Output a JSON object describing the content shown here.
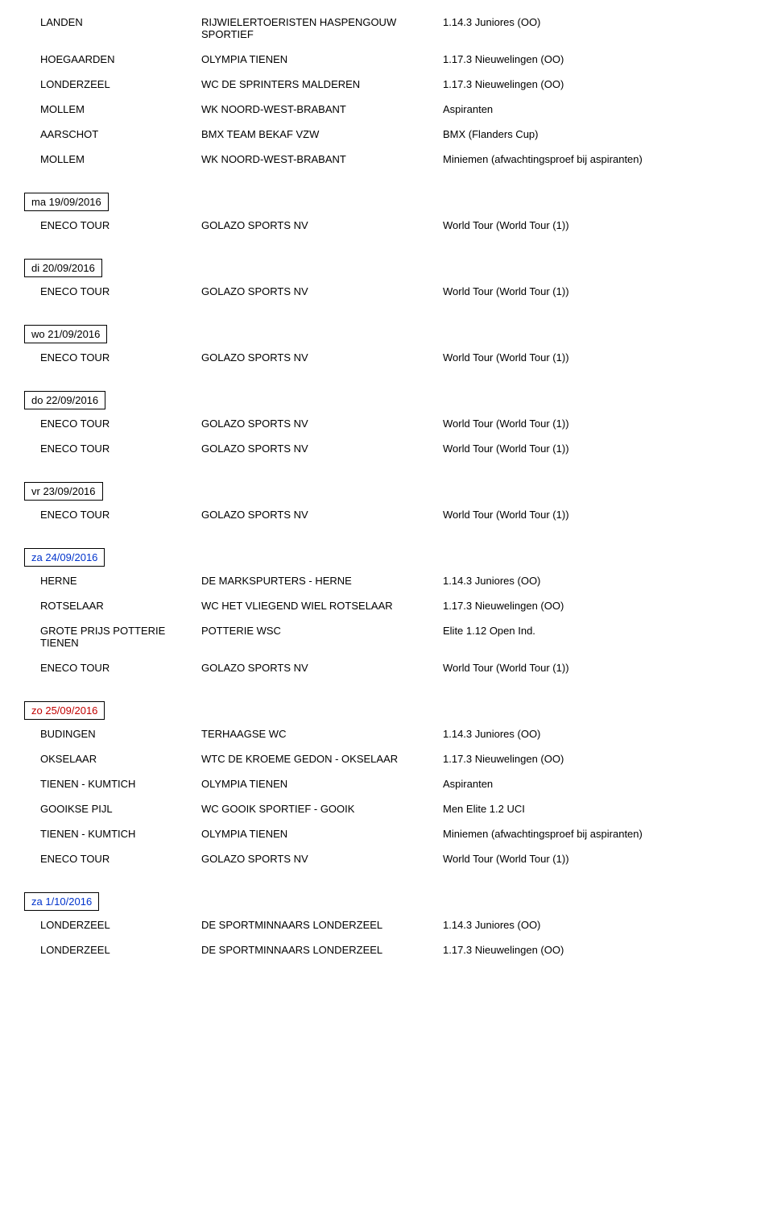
{
  "topRows": [
    {
      "c1": "LANDEN",
      "c2": "RIJWIELERTOERISTEN HASPENGOUW SPORTIEF",
      "c3": "1.14.3 Juniores (OO)"
    },
    {
      "c1": "HOEGAARDEN",
      "c2": "OLYMPIA TIENEN",
      "c3": "1.17.3 Nieuwelingen (OO)"
    },
    {
      "c1": "LONDERZEEL",
      "c2": "WC DE SPRINTERS MALDEREN",
      "c3": "1.17.3 Nieuwelingen (OO)"
    },
    {
      "c1": "MOLLEM",
      "c2": "WK NOORD-WEST-BRABANT",
      "c3": "Aspiranten"
    },
    {
      "c1": "AARSCHOT",
      "c2": "BMX TEAM BEKAF VZW",
      "c3": "BMX (Flanders Cup)"
    },
    {
      "c1": "MOLLEM",
      "c2": "WK NOORD-WEST-BRABANT",
      "c3": "Miniemen (afwachtingsproef bij aspiranten)"
    }
  ],
  "sections": [
    {
      "date": "ma 19/09/2016",
      "dateClass": "",
      "rows": [
        {
          "c1": "ENECO TOUR",
          "c2": "GOLAZO SPORTS NV",
          "c3": "World Tour (World Tour (1))"
        }
      ]
    },
    {
      "date": "di 20/09/2016",
      "dateClass": "",
      "rows": [
        {
          "c1": "ENECO TOUR",
          "c2": "GOLAZO SPORTS NV",
          "c3": "World Tour (World Tour (1))"
        }
      ]
    },
    {
      "date": "wo 21/09/2016",
      "dateClass": "",
      "rows": [
        {
          "c1": "ENECO TOUR",
          "c2": "GOLAZO SPORTS NV",
          "c3": "World Tour (World Tour (1))"
        }
      ]
    },
    {
      "date": "do 22/09/2016",
      "dateClass": "",
      "rows": [
        {
          "c1": "ENECO TOUR",
          "c2": "GOLAZO SPORTS NV",
          "c3": "World Tour (World Tour (1))"
        },
        {
          "c1": "ENECO TOUR",
          "c2": "GOLAZO SPORTS NV",
          "c3": "World Tour (World Tour (1))"
        }
      ]
    },
    {
      "date": "vr 23/09/2016",
      "dateClass": "",
      "rows": [
        {
          "c1": "ENECO TOUR",
          "c2": "GOLAZO SPORTS NV",
          "c3": "World Tour (World Tour (1))"
        }
      ]
    },
    {
      "date": "za 24/09/2016",
      "dateClass": "blue",
      "rows": [
        {
          "c1": "HERNE",
          "c2": "DE MARKSPURTERS  -  HERNE",
          "c3": "1.14.3 Juniores (OO)"
        },
        {
          "c1": "ROTSELAAR",
          "c2": "WC HET VLIEGEND WIEL ROTSELAAR",
          "c3": "1.17.3 Nieuwelingen (OO)"
        },
        {
          "c1": "GROTE PRIJS POTTERIE TIENEN",
          "c2": "POTTERIE WSC",
          "c3": "Elite 1.12 Open Ind."
        },
        {
          "c1": "ENECO TOUR",
          "c2": "GOLAZO SPORTS NV",
          "c3": "World Tour (World Tour (1))"
        }
      ]
    },
    {
      "date": "zo 25/09/2016",
      "dateClass": "red",
      "rows": [
        {
          "c1": "BUDINGEN",
          "c2": "TERHAAGSE WC",
          "c3": "1.14.3 Juniores (OO)"
        },
        {
          "c1": "OKSELAAR",
          "c2": "WTC DE KROEME GEDON - OKSELAAR",
          "c3": "1.17.3 Nieuwelingen (OO)"
        },
        {
          "c1": "TIENEN - KUMTICH",
          "c2": "OLYMPIA TIENEN",
          "c3": "Aspiranten"
        },
        {
          "c1": "GOOIKSE PIJL",
          "c2": "WC GOOIK SPORTIEF - GOOIK",
          "c3": "Men Elite 1.2 UCI"
        },
        {
          "c1": "TIENEN - KUMTICH",
          "c2": "OLYMPIA TIENEN",
          "c3": "Miniemen (afwachtingsproef bij aspiranten)"
        },
        {
          "c1": "ENECO TOUR",
          "c2": "GOLAZO SPORTS NV",
          "c3": "World Tour (World Tour (1))"
        }
      ]
    },
    {
      "date": "za 1/10/2016",
      "dateClass": "blue",
      "rows": [
        {
          "c1": "LONDERZEEL",
          "c2": "DE SPORTMINNAARS LONDERZEEL",
          "c3": "1.14.3 Juniores (OO)"
        },
        {
          "c1": "LONDERZEEL",
          "c2": "DE SPORTMINNAARS LONDERZEEL",
          "c3": "1.17.3 Nieuwelingen (OO)"
        }
      ]
    }
  ]
}
